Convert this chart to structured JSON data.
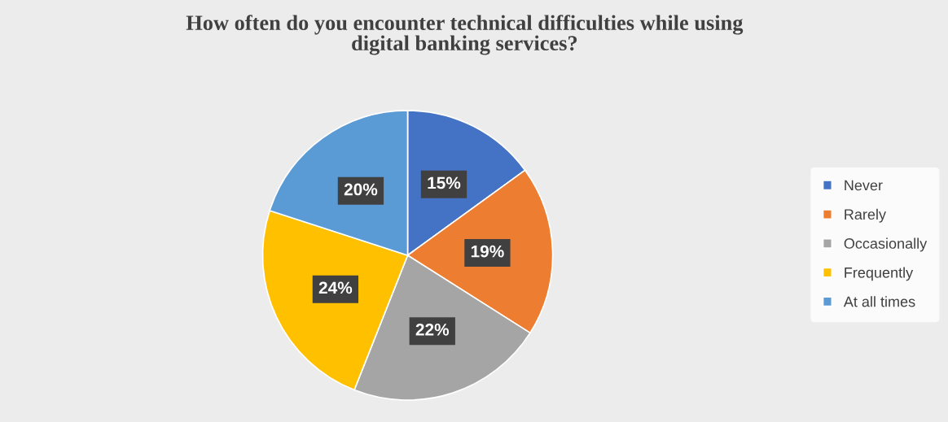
{
  "chart_data": {
    "type": "pie",
    "title": "How often do you encounter technical difficulties while using\ndigital banking services?",
    "categories": [
      "Never",
      "Rarely",
      "Occasionally",
      "Frequently",
      "At all times"
    ],
    "values": [
      15,
      19,
      22,
      24,
      20
    ],
    "colors": [
      "#4472c4",
      "#ed7d31",
      "#a5a5a5",
      "#ffc000",
      "#5b9bd5"
    ],
    "value_labels": [
      "15%",
      "19%",
      "22%",
      "24%",
      "20%"
    ],
    "legend": "right"
  }
}
